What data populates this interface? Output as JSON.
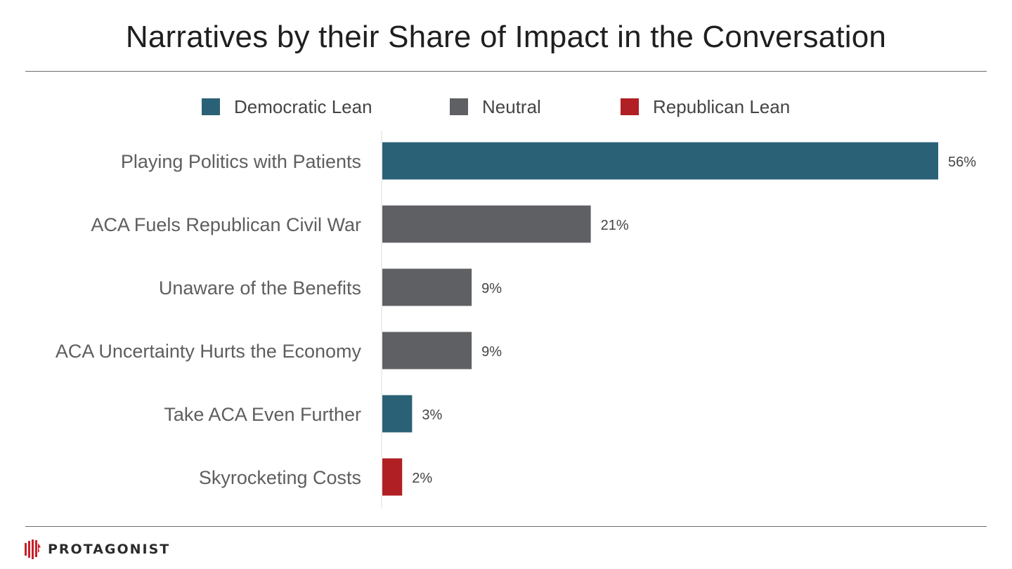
{
  "chart_data": {
    "type": "bar",
    "orientation": "horizontal",
    "title": "Narratives by their Share of Impact in the Conversation",
    "categories": [
      "Playing Politics with Patients",
      "ACA Fuels Republican Civil War",
      "Unaware of the Benefits",
      "ACA Uncertainty Hurts the Economy",
      "Take ACA Even Further",
      "Skyrocketing Costs"
    ],
    "values": [
      56,
      21,
      9,
      9,
      3,
      2
    ],
    "value_labels": [
      "56%",
      "21%",
      "9%",
      "9%",
      "3%",
      "2%"
    ],
    "bar_groups": [
      "Democratic Lean",
      "Neutral",
      "Neutral",
      "Neutral",
      "Democratic Lean",
      "Republican Lean"
    ],
    "legend": [
      {
        "label": "Democratic Lean",
        "color": "#2a6176"
      },
      {
        "label": "Neutral",
        "color": "#5f6063"
      },
      {
        "label": "Republican Lean",
        "color": "#b01f24"
      }
    ],
    "legend_position": "top",
    "xlim": [
      0,
      56
    ],
    "grid": false,
    "xlabel": "",
    "ylabel": ""
  },
  "footer": {
    "brand": "PROTAGONIST"
  },
  "colors": {
    "democratic": "#2a6176",
    "neutral": "#5f6063",
    "republican": "#b01f24"
  }
}
